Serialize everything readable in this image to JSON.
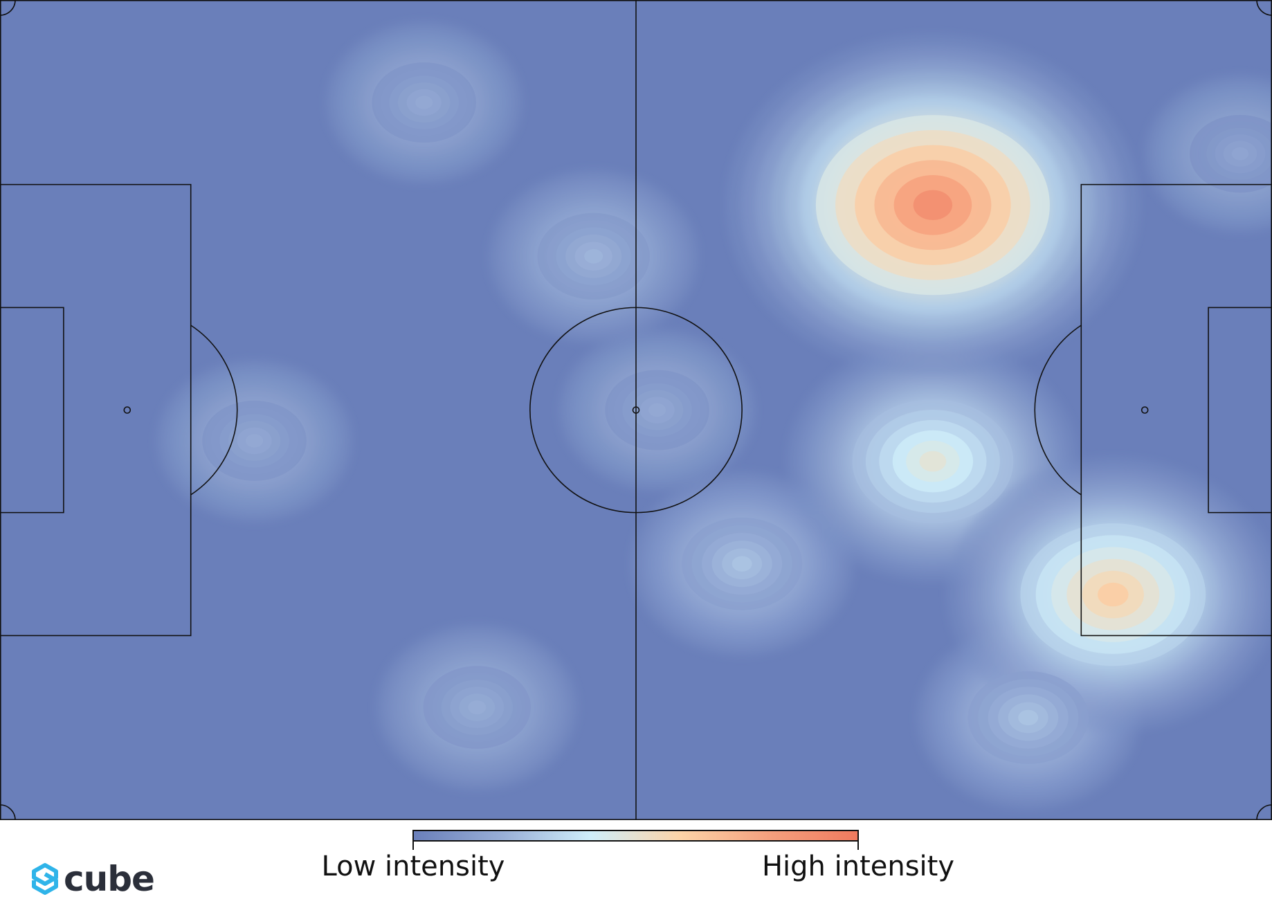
{
  "colors": {
    "pitch_base": "#6a7fba",
    "line": "#111111",
    "accent_logo": "#2fb4e9",
    "logo_text": "#2b2f3a"
  },
  "colorbar": {
    "low_label": "Low intensity",
    "high_label": "High intensity",
    "stops": [
      "#6a7fba",
      "#98aed6",
      "#cfeefa",
      "#fdd4a8",
      "#f5a07e",
      "#ef7a5e"
    ]
  },
  "logo": {
    "text": "cube",
    "icon": "cube-logo-icon"
  },
  "chart_data": {
    "type": "heatmap",
    "subject": "football pitch",
    "pitch": {
      "length": 120,
      "width": 80
    },
    "scale": {
      "min_label": "Low intensity",
      "max_label": "High intensity"
    },
    "hotspots": [
      {
        "x": 88,
        "y": 20,
        "intensity": 1.0
      },
      {
        "x": 105,
        "y": 58,
        "intensity": 0.7
      },
      {
        "x": 88,
        "y": 45,
        "intensity": 0.55
      },
      {
        "x": 56,
        "y": 25,
        "intensity": 0.25
      },
      {
        "x": 45,
        "y": 69,
        "intensity": 0.22
      },
      {
        "x": 40,
        "y": 10,
        "intensity": 0.2
      },
      {
        "x": 24,
        "y": 43,
        "intensity": 0.2
      },
      {
        "x": 117,
        "y": 15,
        "intensity": 0.18
      },
      {
        "x": 70,
        "y": 55,
        "intensity": 0.3
      },
      {
        "x": 97,
        "y": 70,
        "intensity": 0.3
      },
      {
        "x": 62,
        "y": 40,
        "intensity": 0.2
      }
    ]
  }
}
